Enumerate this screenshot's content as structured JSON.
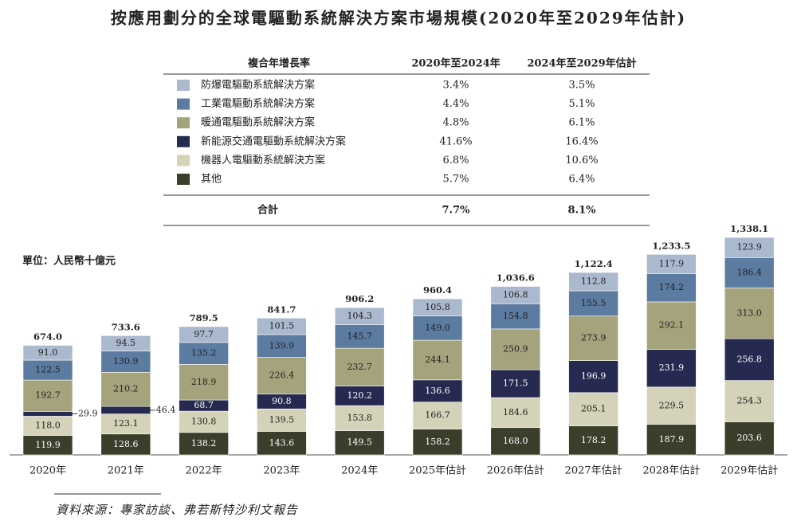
{
  "chart_data": {
    "type": "stacked_bar",
    "title": "按應用劃分的全球電驅動系統解決方案市場規模(2020年至2029年估計)",
    "unit_label": "單位：人民幣十億元",
    "source": "資料來源：專家訪談、弗若斯特沙利文報告",
    "categories": [
      "2020年",
      "2021年",
      "2022年",
      "2023年",
      "2024年",
      "2025年估計",
      "2026年估計",
      "2027年估計",
      "2028年估計",
      "2029年估計"
    ],
    "series": [
      {
        "name": "其他",
        "color": "#3b3e2b",
        "values": [
          119.9,
          128.6,
          138.2,
          143.6,
          149.5,
          158.2,
          168.0,
          178.2,
          187.9,
          203.6
        ],
        "value_labels": [
          "119.9",
          "128.6",
          "138.2",
          "143.6",
          "149.5",
          "158.2",
          "168.0",
          "178.2",
          "187.9",
          "203.6"
        ],
        "cagr": [
          "5.7%",
          "6.4%"
        ]
      },
      {
        "name": "機器人電驅動系統解決方案",
        "color": "#d4d2b8",
        "values": [
          118.0,
          123.1,
          130.8,
          139.5,
          153.8,
          166.7,
          184.6,
          205.1,
          229.5,
          254.3
        ],
        "value_labels": [
          "118.0",
          "123.1",
          "130.8",
          "139.5",
          "153.8",
          "166.7",
          "184.6",
          "205.1",
          "229.5",
          "254.3"
        ],
        "cagr": [
          "6.8%",
          "10.6%"
        ]
      },
      {
        "name": "新能源交通電驅動系統解決方案",
        "color": "#262a50",
        "values": [
          29.9,
          46.4,
          68.7,
          90.8,
          120.2,
          136.6,
          171.5,
          196.9,
          231.9,
          256.8
        ],
        "value_labels": [
          "29.9",
          "46.4",
          "68.7",
          "90.8",
          "120.2",
          "136.6",
          "171.5",
          "196.9",
          "231.9",
          "256.8"
        ],
        "cagr": [
          "41.6%",
          "16.4%"
        ]
      },
      {
        "name": "暖通電驅動系統解決方案",
        "color": "#a5a37c",
        "values": [
          192.7,
          210.2,
          218.9,
          226.4,
          232.7,
          244.1,
          250.9,
          273.9,
          292.1,
          313.0
        ],
        "value_labels": [
          "192.7",
          "210.2",
          "218.9",
          "226.4",
          "232.7",
          "244.1",
          "250.9",
          "273.9",
          "292.1",
          "313.0"
        ],
        "cagr": [
          "4.8%",
          "6.1%"
        ]
      },
      {
        "name": "工業電驅動系統解決方案",
        "color": "#5c7ba1",
        "values": [
          122.5,
          130.9,
          135.2,
          139.9,
          145.7,
          149.0,
          154.8,
          155.5,
          174.2,
          186.4
        ],
        "value_labels": [
          "122.5",
          "130.9",
          "135.2",
          "139.9",
          "145.7",
          "149.0",
          "154.8",
          "155.5",
          "174.2",
          "186.4"
        ],
        "cagr": [
          "4.4%",
          "5.1%"
        ]
      },
      {
        "name": "防爆電驅動系統解決方案",
        "color": "#aab9cd",
        "values": [
          91.0,
          94.5,
          97.7,
          101.5,
          104.3,
          105.8,
          106.8,
          112.8,
          117.9,
          123.9
        ],
        "value_labels": [
          "91.0",
          "94.5",
          "97.7",
          "101.5",
          "104.3",
          "105.8",
          "106.8",
          "112.8",
          "117.9",
          "123.9"
        ],
        "cagr": [
          "3.4%",
          "3.5%"
        ]
      }
    ],
    "totals": {
      "values": [
        674.0,
        733.6,
        789.5,
        841.7,
        906.2,
        960.4,
        1036.6,
        1122.4,
        1233.5,
        1338.1
      ],
      "value_labels": [
        "674.0",
        "733.6",
        "789.5",
        "841.7",
        "906.2",
        "960.4",
        "1,036.6",
        "1,122.4",
        "1,233.5",
        "1,338.1"
      ]
    },
    "cagr_table": {
      "header": [
        "複合年增長率",
        "2020年至2024年",
        "2024年至2029年估計"
      ],
      "total_row": [
        "合計",
        "7.7%",
        "8.1%"
      ]
    }
  }
}
